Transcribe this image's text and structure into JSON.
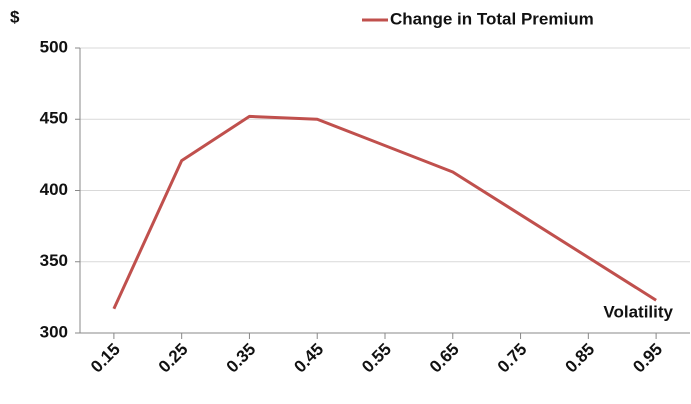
{
  "chart_data": {
    "type": "line",
    "ylabel": "$",
    "xlabel": "Volatility",
    "x": [
      0.15,
      0.25,
      0.35,
      0.45,
      0.65,
      0.95
    ],
    "series": [
      {
        "name": "Change in Total Premium",
        "color": "#c0504d",
        "values": [
          317,
          421,
          452,
          450,
          413,
          323
        ]
      }
    ],
    "xlim": [
      0.1,
      1.0
    ],
    "xticks": [
      0.15,
      0.25,
      0.35,
      0.45,
      0.55,
      0.65,
      0.75,
      0.85,
      0.95
    ],
    "ylim": [
      300,
      500
    ],
    "yticks": [
      300,
      350,
      400,
      450,
      500
    ],
    "grid": true,
    "legend": "top-right"
  }
}
